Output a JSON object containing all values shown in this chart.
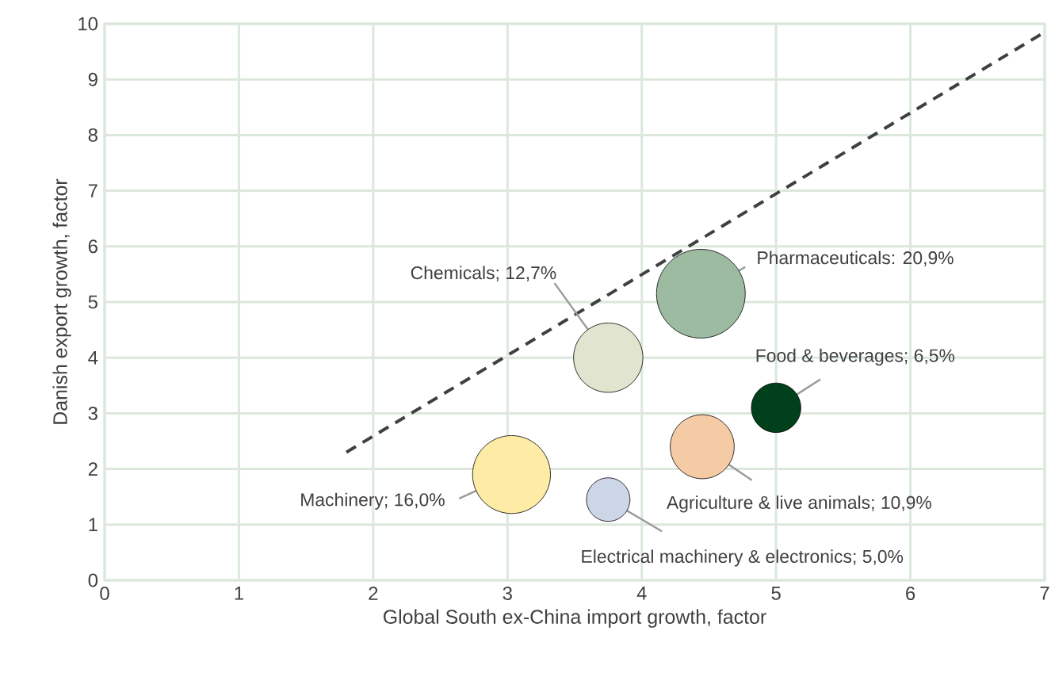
{
  "chart_data": {
    "type": "bubble",
    "xlabel": "Global South ex-China import growth, factor",
    "ylabel": "Danish export growth, factor",
    "xlim": [
      0,
      7
    ],
    "ylim": [
      0,
      10
    ],
    "xticks": [
      0,
      1,
      2,
      3,
      4,
      5,
      6,
      7
    ],
    "yticks": [
      0,
      1,
      2,
      3,
      4,
      5,
      6,
      7,
      8,
      9,
      10
    ],
    "grid": true,
    "series": [
      {
        "name": "Pharmaceuticals: 20,9%",
        "color": "#9dbba0",
        "x": [
          4.44
        ],
        "values": [
          5.15
        ],
        "sizes": [
          1
        ]
      },
      {
        "name": "Chemicals; 12,7%",
        "color": "#e1e4cf",
        "x": [
          3.75
        ],
        "values": [
          4.0
        ],
        "sizes": [
          0.61
        ]
      },
      {
        "name": "Food & beverages; 6,5%",
        "color": "#00401a",
        "x": [
          5.0
        ],
        "values": [
          3.1
        ],
        "sizes": [
          0.31
        ]
      },
      {
        "name": "Agriculture & live animals; 10,9%",
        "color": "#f4cba5",
        "x": [
          4.45
        ],
        "values": [
          2.4
        ],
        "sizes": [
          0.52
        ]
      },
      {
        "name": "Machinery; 16,0%",
        "color": "#feeba5",
        "x": [
          3.03
        ],
        "values": [
          1.9
        ],
        "sizes": [
          0.77
        ]
      },
      {
        "name": "Electrical machinery & electronics; 5,0%",
        "color": "#ccd6e6",
        "x": [
          3.75
        ],
        "values": [
          1.45
        ],
        "sizes": [
          0.24
        ]
      },
      {
        "type": "line",
        "color": "#404040",
        "line_style": "dashed",
        "marker": "none",
        "x": [
          1.8,
          7
        ],
        "values": [
          2.3,
          9.85
        ]
      }
    ]
  }
}
